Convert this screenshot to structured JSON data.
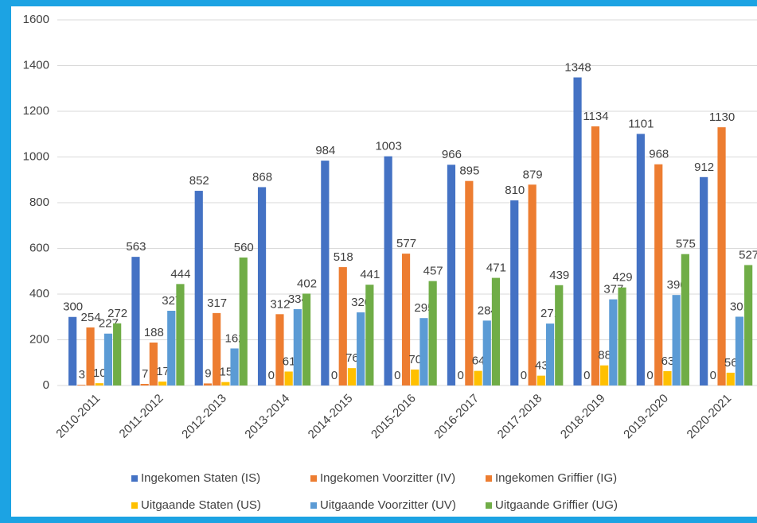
{
  "chart_data": {
    "type": "bar",
    "categories": [
      "2010-2011",
      "2011-2012",
      "2012-2013",
      "2013-2014",
      "2014-2015",
      "2015-2016",
      "2016-2017",
      "2017-2018",
      "2018-2019",
      "2019-2020",
      "2020-2021"
    ],
    "series": [
      {
        "name": "Ingekomen Staten (IS)",
        "color": "#4472c4",
        "values": [
          300,
          563,
          852,
          868,
          984,
          1003,
          966,
          810,
          1348,
          1101,
          912
        ]
      },
      {
        "name": "Ingekomen Voorzitter (IV)",
        "color": "#ed7d31",
        "values": [
          3,
          7,
          9,
          0,
          0,
          0,
          0,
          0,
          0,
          0,
          0
        ]
      },
      {
        "name": "Ingekomen Griffier (IG)",
        "color": "#ed7d31",
        "values": [
          254,
          188,
          317,
          312,
          518,
          577,
          895,
          879,
          1134,
          968,
          1130
        ]
      },
      {
        "name": "Uitgaande Staten (US)",
        "color": "#ffc000",
        "values": [
          10,
          17,
          15,
          61,
          76,
          70,
          64,
          43,
          88,
          63,
          56
        ]
      },
      {
        "name": "Uitgaande Voorzitter (UV)",
        "color": "#5b9bd5",
        "values": [
          227,
          327,
          162,
          334,
          320,
          295,
          284,
          271,
          377,
          396,
          301
        ]
      },
      {
        "name": "Uitgaande Griffier (UG)",
        "color": "#70ad47",
        "values": [
          272,
          444,
          560,
          402,
          441,
          457,
          471,
          439,
          429,
          575,
          527
        ]
      }
    ],
    "ylim": [
      0,
      1600
    ],
    "yticks": [
      0,
      200,
      400,
      600,
      800,
      1000,
      1200,
      1400,
      1600
    ],
    "grid": true,
    "legend": "bottom"
  }
}
